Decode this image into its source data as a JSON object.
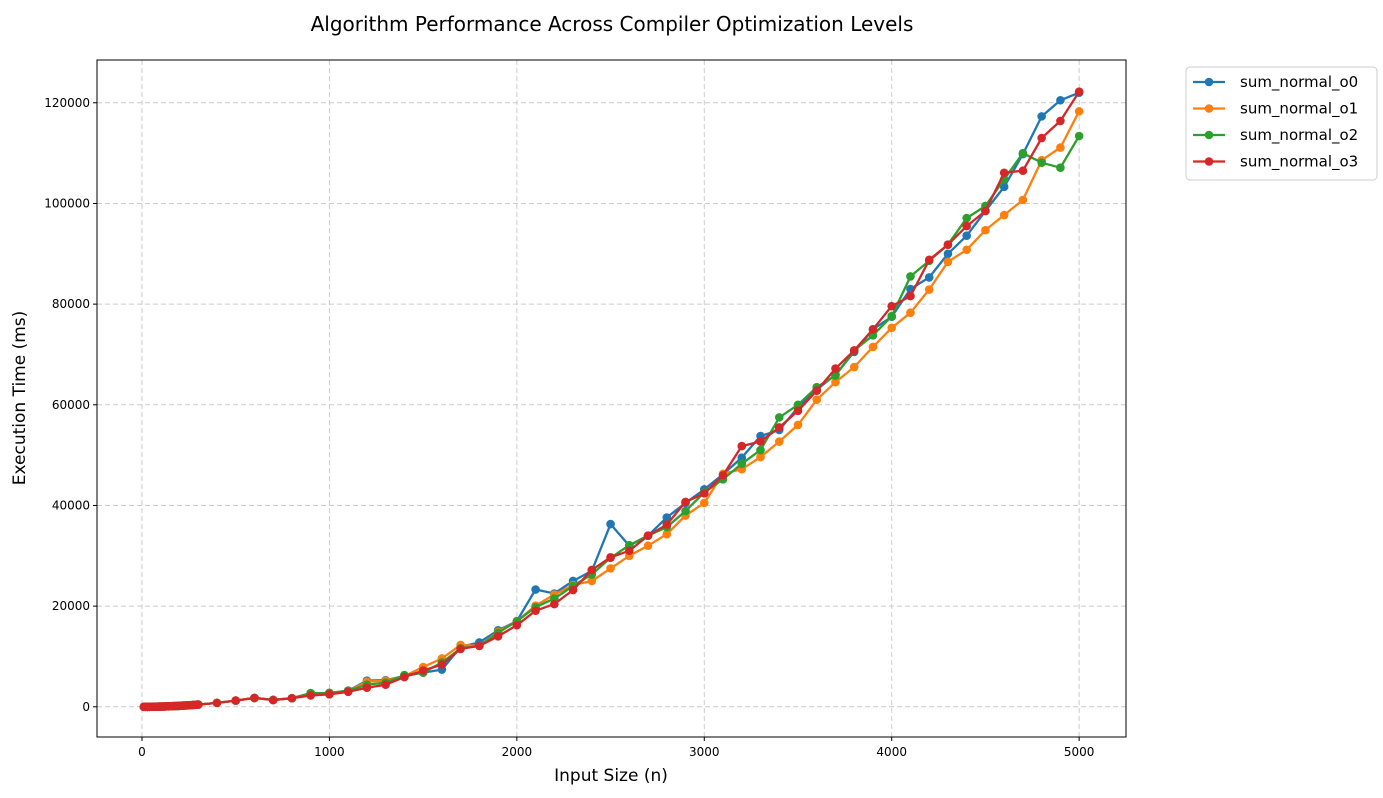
{
  "chart_data": {
    "type": "line",
    "title": "Algorithm Performance Across Compiler Optimization Levels",
    "xlabel": "Input Size (n)",
    "ylabel": "Execution Time (ms)",
    "xlim": [
      -240,
      5250
    ],
    "ylim": [
      -6000,
      128500
    ],
    "xticks": [
      0,
      1000,
      2000,
      3000,
      4000,
      5000
    ],
    "xtick_labels": [
      "0",
      "1000",
      "2000",
      "3000",
      "4000",
      "5000"
    ],
    "yticks": [
      0,
      20000,
      40000,
      60000,
      80000,
      100000,
      120000
    ],
    "ytick_labels": [
      "0",
      "20000",
      "40000",
      "60000",
      "80000",
      "100000",
      "120000"
    ],
    "grid": true,
    "legend_position": "outside top-right",
    "x": [
      10,
      20,
      30,
      40,
      50,
      60,
      70,
      80,
      90,
      100,
      110,
      120,
      130,
      140,
      150,
      160,
      170,
      180,
      190,
      200,
      210,
      220,
      230,
      240,
      250,
      260,
      270,
      280,
      290,
      300,
      400,
      500,
      600,
      700,
      800,
      900,
      1000,
      1100,
      1200,
      1300,
      1400,
      1500,
      1600,
      1700,
      1800,
      1900,
      2000,
      2100,
      2200,
      2300,
      2400,
      2500,
      2600,
      2700,
      2800,
      2900,
      3000,
      3100,
      3200,
      3300,
      3400,
      3500,
      3600,
      3700,
      3800,
      3900,
      4000,
      4100,
      4200,
      4300,
      4400,
      4500,
      4600,
      4700,
      4800,
      4900,
      5000
    ],
    "series": [
      {
        "name": "sum_normal_o0",
        "color": "#1f77b4",
        "values": [
          1,
          2,
          4,
          7,
          12,
          17,
          24,
          31,
          40,
          49,
          59,
          70,
          82,
          96,
          110,
          125,
          141,
          158,
          176,
          195,
          215,
          236,
          258,
          281,
          305,
          330,
          356,
          384,
          412,
          440,
          780,
          1230,
          1760,
          1380,
          1720,
          2700,
          2750,
          3200,
          5200,
          5300,
          6100,
          6800,
          7400,
          11900,
          12800,
          15200,
          17000,
          23300,
          22500,
          25000,
          27000,
          36300,
          32000,
          34000,
          37600,
          40500,
          43200,
          46200,
          49500,
          53800,
          55000,
          59500,
          63000,
          66000,
          70500,
          75000,
          77500,
          83000,
          85300,
          90000,
          93600,
          98500,
          103300,
          109800,
          117300,
          120500,
          122000
        ]
      },
      {
        "name": "sum_normal_o1",
        "color": "#ff7f0e",
        "values": [
          1,
          2,
          4,
          7,
          12,
          17,
          24,
          31,
          40,
          49,
          59,
          70,
          82,
          96,
          110,
          125,
          141,
          158,
          176,
          195,
          215,
          236,
          258,
          281,
          305,
          330,
          356,
          384,
          412,
          440,
          780,
          1230,
          1750,
          1350,
          1700,
          2700,
          2750,
          3100,
          5000,
          5200,
          6100,
          7900,
          9600,
          12300,
          12100,
          14900,
          17000,
          20100,
          22300,
          24200,
          25000,
          27500,
          30000,
          32000,
          34300,
          38000,
          40500,
          46300,
          47200,
          49600,
          52700,
          56000,
          61000,
          64500,
          67500,
          71500,
          75300,
          78300,
          82900,
          88400,
          90800,
          94700,
          97700,
          100700,
          108600,
          111100,
          118300
        ]
      },
      {
        "name": "sum_normal_o2",
        "color": "#2ca02c",
        "values": [
          1,
          2,
          4,
          7,
          12,
          17,
          24,
          31,
          40,
          49,
          59,
          70,
          82,
          96,
          110,
          125,
          141,
          158,
          176,
          195,
          215,
          236,
          258,
          281,
          305,
          330,
          356,
          384,
          412,
          440,
          780,
          1230,
          1760,
          1370,
          1710,
          2700,
          2750,
          3200,
          4400,
          4800,
          6300,
          6800,
          8800,
          11600,
          12100,
          14700,
          17000,
          19800,
          21500,
          24000,
          26300,
          29600,
          32100,
          34000,
          35700,
          38900,
          42600,
          45200,
          48300,
          51000,
          57500,
          60000,
          63500,
          65800,
          70800,
          73800,
          77600,
          85500,
          88600,
          91800,
          97100,
          99500,
          104800,
          110000,
          108100,
          107100,
          113400
        ]
      },
      {
        "name": "sum_normal_o3",
        "color": "#d62728",
        "values": [
          1,
          2,
          4,
          7,
          12,
          17,
          24,
          31,
          40,
          49,
          59,
          70,
          82,
          96,
          110,
          125,
          141,
          158,
          176,
          195,
          215,
          236,
          258,
          281,
          305,
          330,
          356,
          384,
          412,
          440,
          780,
          1230,
          1760,
          1330,
          1700,
          2250,
          2480,
          2980,
          3800,
          4400,
          5900,
          7200,
          8400,
          11500,
          12100,
          14000,
          16200,
          19100,
          20400,
          23200,
          27200,
          29700,
          31000,
          34000,
          36200,
          40700,
          42400,
          46000,
          51800,
          52700,
          55500,
          58800,
          62800,
          67200,
          70800,
          75000,
          79600,
          81600,
          88800,
          91800,
          95500,
          98500,
          106100,
          106500,
          113000,
          116400,
          122200
        ]
      }
    ]
  }
}
